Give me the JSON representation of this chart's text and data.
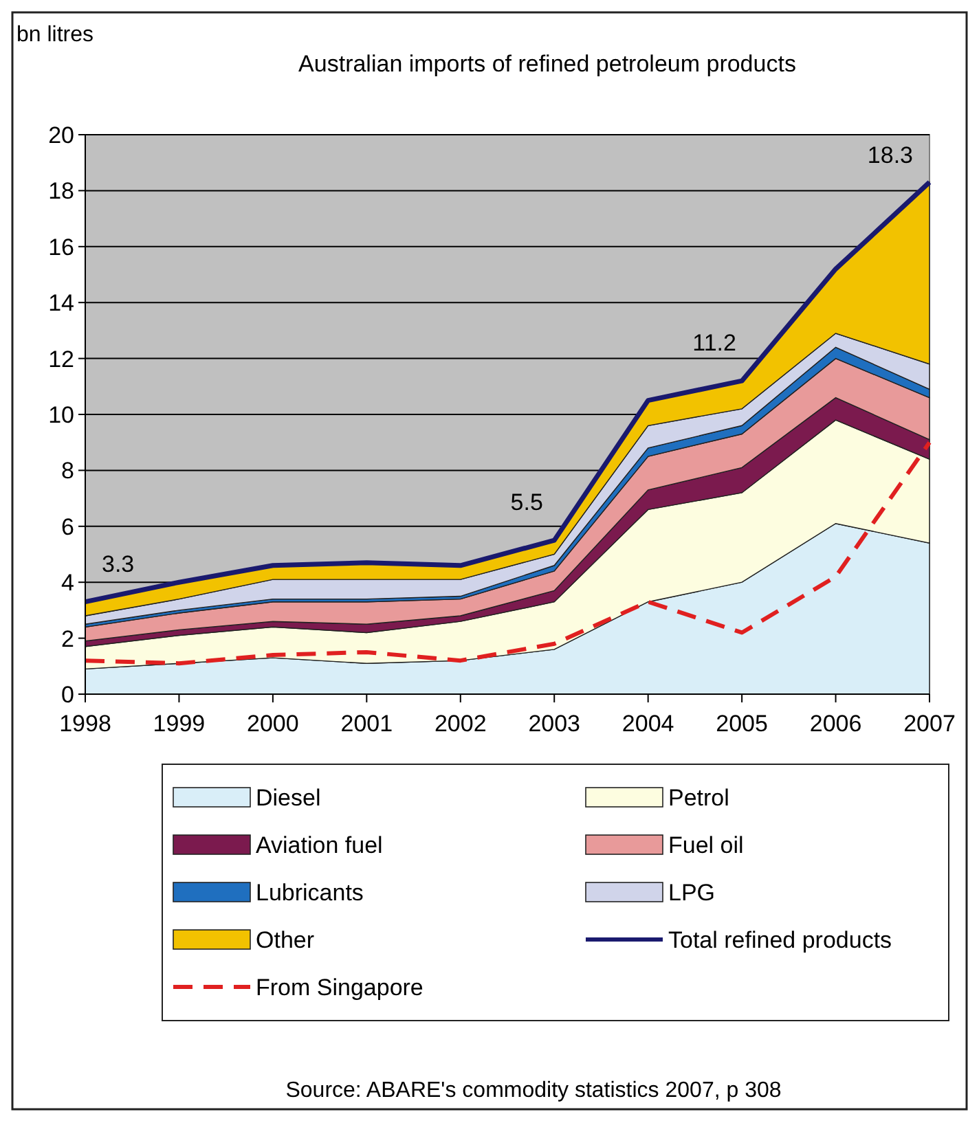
{
  "chart_data": {
    "type": "area",
    "title": "Australian imports of refined petroleum products",
    "ylabel": "bn litres",
    "categories": [
      "1998",
      "1999",
      "2000",
      "2001",
      "2002",
      "2003",
      "2004",
      "2005",
      "2006",
      "2007"
    ],
    "stacked": true,
    "ylim": [
      0,
      20
    ],
    "yticks": [
      0,
      2,
      4,
      6,
      8,
      10,
      12,
      14,
      16,
      18,
      20
    ],
    "grid": "y",
    "legend": "bottom",
    "series": [
      {
        "name": "Diesel",
        "color": "#d9eef8",
        "values": [
          0.9,
          1.1,
          1.3,
          1.1,
          1.2,
          1.6,
          3.3,
          4.0,
          6.1,
          5.4
        ]
      },
      {
        "name": "Petrol",
        "color": "#fdfde0",
        "values": [
          0.8,
          1.0,
          1.1,
          1.1,
          1.4,
          1.7,
          3.3,
          3.2,
          3.7,
          3.0
        ]
      },
      {
        "name": "Aviation fuel",
        "color": "#7b1a4e",
        "values": [
          0.2,
          0.2,
          0.2,
          0.3,
          0.2,
          0.4,
          0.7,
          0.9,
          0.8,
          0.7
        ]
      },
      {
        "name": "Fuel oil",
        "color": "#e89a9a",
        "values": [
          0.5,
          0.6,
          0.7,
          0.8,
          0.6,
          0.7,
          1.2,
          1.2,
          1.4,
          1.5
        ]
      },
      {
        "name": "Lubricants",
        "color": "#1f6fbf",
        "values": [
          0.1,
          0.1,
          0.1,
          0.1,
          0.1,
          0.2,
          0.3,
          0.3,
          0.4,
          0.3
        ]
      },
      {
        "name": "LPG",
        "color": "#d0d4ea",
        "values": [
          0.3,
          0.4,
          0.7,
          0.7,
          0.6,
          0.4,
          0.8,
          0.6,
          0.5,
          0.9
        ]
      },
      {
        "name": "Other",
        "color": "#f2c200",
        "values": [
          0.5,
          0.6,
          0.5,
          0.6,
          0.5,
          0.5,
          0.9,
          1.0,
          2.3,
          6.5
        ]
      },
      {
        "name": "Total refined products",
        "type": "line",
        "color": "#1a1a6e",
        "line_style": "solid",
        "values": [
          3.3,
          4.0,
          4.6,
          4.7,
          4.6,
          5.5,
          10.5,
          11.2,
          15.2,
          18.3
        ]
      },
      {
        "name": "From Singapore",
        "type": "line",
        "color": "#e02020",
        "line_style": "dashed",
        "values": [
          1.2,
          1.1,
          1.4,
          1.5,
          1.2,
          1.8,
          3.3,
          2.2,
          4.2,
          9.0
        ]
      }
    ],
    "annotations": [
      {
        "text": "3.3",
        "x": "1998",
        "y": 3.3
      },
      {
        "text": "5.5",
        "x": "2003",
        "y": 5.5
      },
      {
        "text": "11.2",
        "x": "2005",
        "y": 11.2
      },
      {
        "text": "18.3",
        "x": "2007",
        "y": 18.3
      },
      "Source: ABARE's commodity statistics 2007, p 308"
    ]
  }
}
